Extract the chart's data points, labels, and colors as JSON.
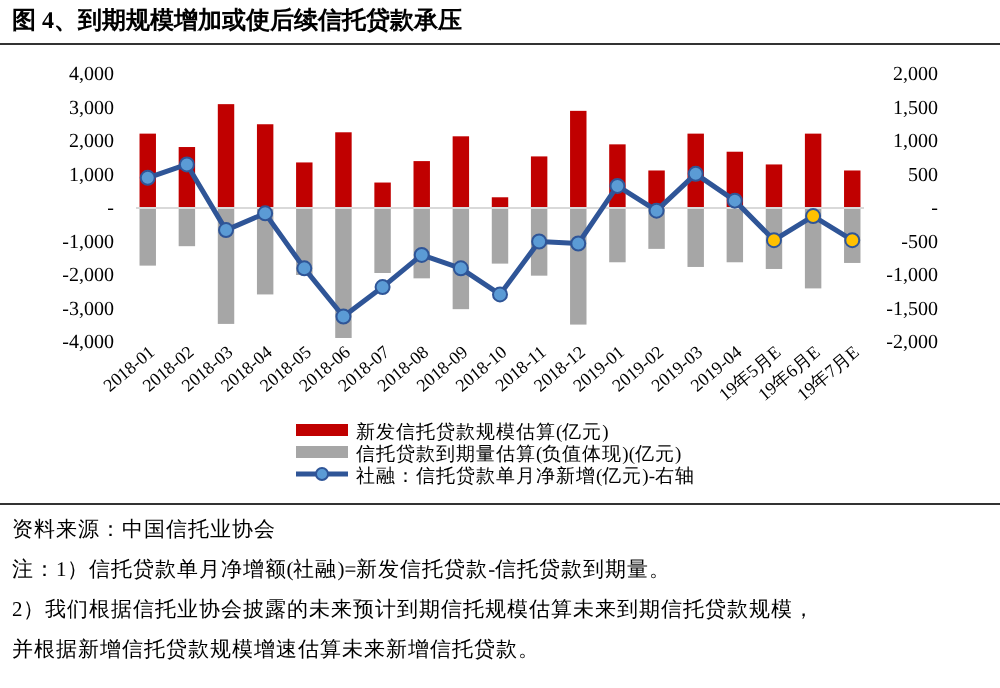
{
  "chart_data": {
    "type": "bar",
    "title": "图 4、到期规模增加或使后续信托贷款承压",
    "categories": [
      "2018-01",
      "2018-02",
      "2018-03",
      "2018-04",
      "2018-05",
      "2018-06",
      "2018-07",
      "2018-08",
      "2018-09",
      "2018-10",
      "2018-11",
      "2018-12",
      "2019-01",
      "2019-02",
      "2019-03",
      "2019-04",
      "19年5月E",
      "19年6月E",
      "19年7月E"
    ],
    "series": [
      {
        "name": "新发信托贷款规模估算(亿元)",
        "color": "#c00000",
        "values": [
          2220,
          1820,
          3100,
          2500,
          1360,
          2260,
          760,
          1400,
          2140,
          320,
          1540,
          2900,
          1900,
          1120,
          2220,
          1680,
          1300,
          2220,
          1120
        ]
      },
      {
        "name": "信托贷款到期量估算(负值体现)(亿元)",
        "color": "#a6a6a6",
        "values": [
          -1720,
          -1140,
          -3460,
          -2580,
          -2000,
          -3880,
          -1940,
          -2100,
          -3020,
          -1660,
          -2020,
          -3480,
          -1620,
          -1220,
          -1760,
          -1620,
          -1820,
          -2400,
          -1640
        ]
      },
      {
        "name": "社融：信托贷款单月净新增(亿元)-右轴",
        "type": "line",
        "axis": "y2",
        "color": "#2f5597",
        "colors": [
          "#5b9bd5",
          "#5b9bd5",
          "#5b9bd5",
          "#5b9bd5",
          "#5b9bd5",
          "#5b9bd5",
          "#5b9bd5",
          "#5b9bd5",
          "#5b9bd5",
          "#5b9bd5",
          "#5b9bd5",
          "#5b9bd5",
          "#5b9bd5",
          "#5b9bd5",
          "#5b9bd5",
          "#5b9bd5",
          "#ffc000",
          "#ffc000",
          "#ffc000"
        ],
        "values": [
          450,
          650,
          -330,
          -80,
          -900,
          -1620,
          -1180,
          -700,
          -900,
          -1290,
          -500,
          -530,
          330,
          -40,
          510,
          110,
          -480,
          -120,
          -480
        ]
      }
    ],
    "ylim": [
      -4000,
      4000
    ],
    "yticks": [
      {
        "value": -4000,
        "label": "-4,000"
      },
      {
        "value": -3000,
        "label": "-3,000"
      },
      {
        "value": -2000,
        "label": "-2,000"
      },
      {
        "value": -1000,
        "label": "-1,000"
      },
      {
        "value": 0,
        "label": "-"
      },
      {
        "value": 1000,
        "label": "1,000"
      },
      {
        "value": 2000,
        "label": "2,000"
      },
      {
        "value": 3000,
        "label": "3,000"
      },
      {
        "value": 4000,
        "label": "4,000"
      }
    ],
    "y2lim": [
      -2000,
      2000
    ],
    "y2ticks": [
      {
        "value": -2000,
        "label": "-2,000"
      },
      {
        "value": -1500,
        "label": "-1,500"
      },
      {
        "value": -1000,
        "label": "-1,000"
      },
      {
        "value": -500,
        "label": "-500"
      },
      {
        "value": 0,
        "label": "-"
      },
      {
        "value": 500,
        "label": "500"
      },
      {
        "value": 1000,
        "label": "1,000"
      },
      {
        "value": 1500,
        "label": "1,500"
      },
      {
        "value": 2000,
        "label": "2,000"
      }
    ],
    "marker": "circle",
    "legend": "bottom",
    "stacked": true,
    "annotations": [
      "资料来源：中国信托业协会",
      "注：1）信托贷款单月净增额(社融)=新发信托贷款-信托贷款到期量。",
      "2）我们根据信托业协会披露的未来预计到期信托规模估算未来到期信托贷款规模，",
      "并根据新增信托贷款规模增速估算未来新增信托贷款。"
    ]
  }
}
